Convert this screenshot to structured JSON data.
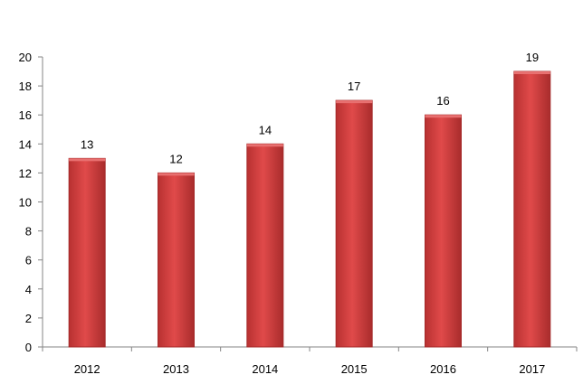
{
  "chart_data": {
    "type": "bar",
    "title": "",
    "xlabel": "",
    "ylabel": "",
    "categories": [
      "2012",
      "2013",
      "2014",
      "2015",
      "2016",
      "2017"
    ],
    "series": [
      {
        "values": [
          13,
          12,
          14,
          17,
          16,
          19
        ]
      }
    ],
    "ylim": [
      0,
      20
    ],
    "yticks": [
      0,
      2,
      4,
      6,
      8,
      10,
      12,
      14,
      16,
      18,
      20
    ],
    "data_labels": true,
    "grid": false,
    "legend": "none",
    "colors": {
      "bar": "#d94040",
      "bar_dark": "#a42a2a",
      "axis": "#868686"
    }
  }
}
